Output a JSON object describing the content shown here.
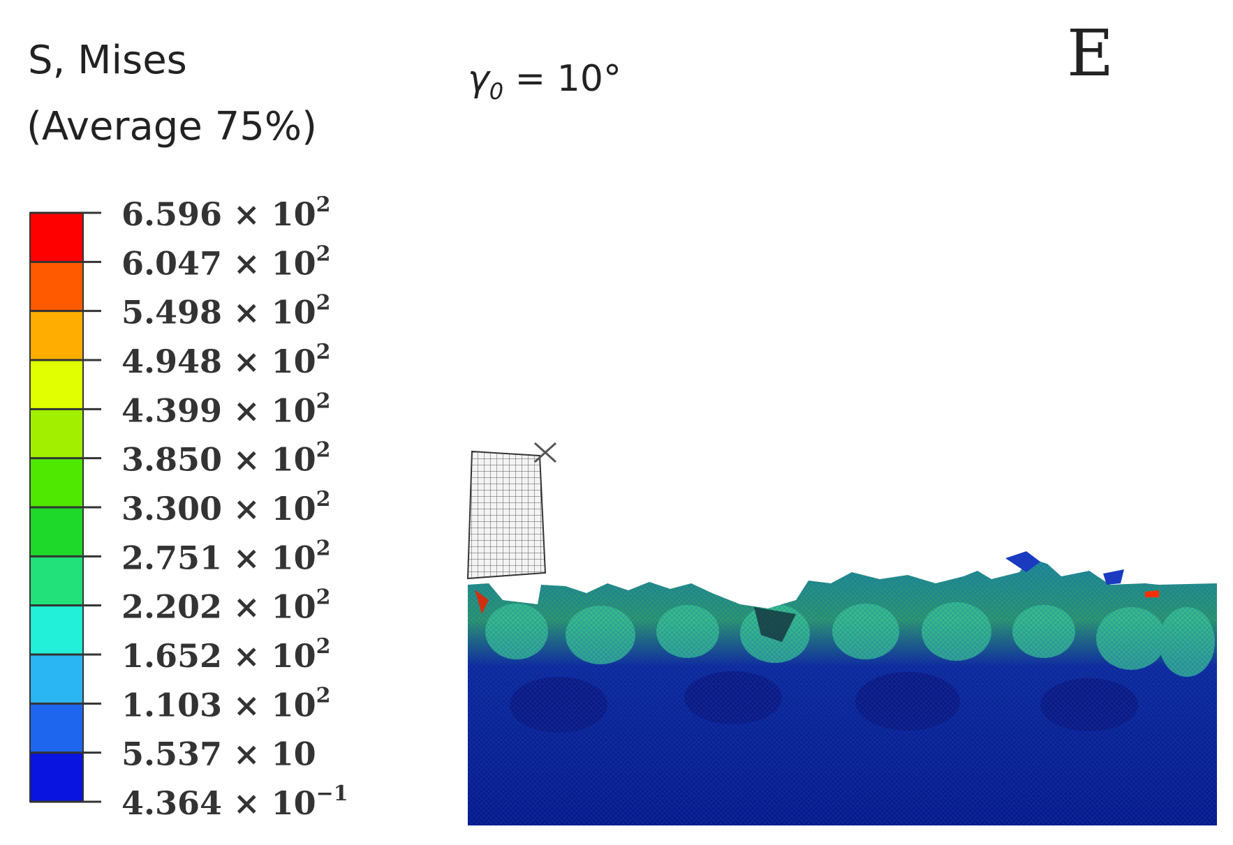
{
  "panel_label": "E",
  "angle_label": {
    "symbol": "γ",
    "subscript": "0",
    "text": " = 10°"
  },
  "legend": {
    "title": [
      "S, Mises",
      "(Average 75%)"
    ],
    "labels": [
      {
        "base": "6.596 × 10",
        "exp": "2"
      },
      {
        "base": "6.047 × 10",
        "exp": "2"
      },
      {
        "base": "5.498 × 10",
        "exp": "2"
      },
      {
        "base": "4.948 × 10",
        "exp": "2"
      },
      {
        "base": "4.399 × 10",
        "exp": "2"
      },
      {
        "base": "3.850 × 10",
        "exp": "2"
      },
      {
        "base": "3.300 × 10",
        "exp": "2"
      },
      {
        "base": "2.751 × 10",
        "exp": "2"
      },
      {
        "base": "2.202 × 10",
        "exp": "2"
      },
      {
        "base": "1.652 × 10",
        "exp": "2"
      },
      {
        "base": "1.103 × 10",
        "exp": "2"
      },
      {
        "base": "5.537 × 10"
      },
      {
        "base": "4.364 × 10",
        "exp": "−1"
      }
    ],
    "colors": [
      "#ff0000",
      "#ff5a00",
      "#ffae00",
      "#e2ff00",
      "#a2f000",
      "#4ee800",
      "#1ed82a",
      "#22e07a",
      "#22f0d8",
      "#2ab6f2",
      "#1f66ee",
      "#0a14e0"
    ]
  }
}
